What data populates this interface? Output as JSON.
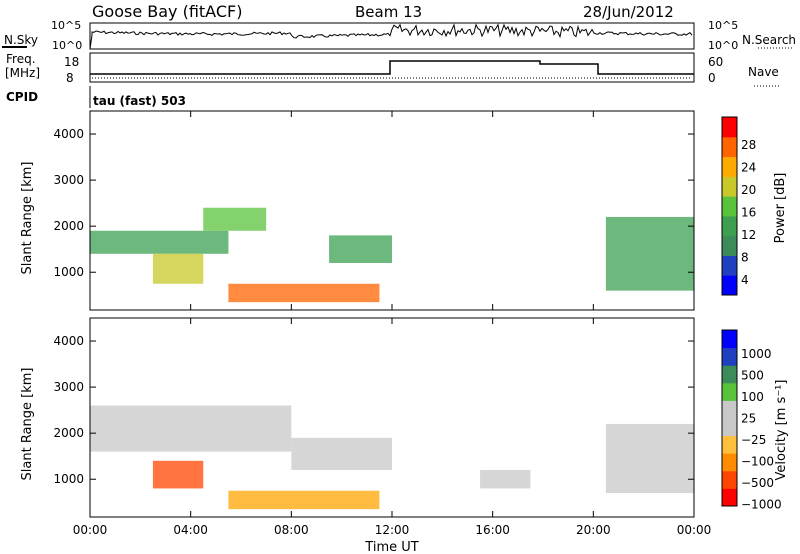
{
  "header": {
    "station": "Goose Bay (fitACF)",
    "beam": "Beam 13",
    "date": "28/Jun/2012"
  },
  "summary": {
    "nsky_label": "N.Sky",
    "nsky_ticks": [
      "10^5",
      "10^0"
    ],
    "nsearch_label": "N.Search",
    "nsearch_ticks": [
      "10^5",
      "10^0"
    ],
    "freq_label": "Freq.",
    "freq_unit": "[MHz]",
    "freq_ticks": [
      "18",
      "8"
    ],
    "nave_label": "Nave",
    "nave_ticks": [
      "60",
      "0"
    ],
    "cpid_label": "CPID",
    "cpid_value": "tau (fast) 503"
  },
  "chart_data": [
    {
      "type": "heatmap",
      "panel": "power",
      "ylabel": "Slant Range [km]",
      "yticks": [
        "1000",
        "2000",
        "3000",
        "4000"
      ],
      "ylim": [
        180,
        4500
      ],
      "xlim": [
        "00:00",
        "24:00"
      ],
      "colorbar_label": "Power [dB]",
      "colorbar_ticks": [
        "28",
        "24",
        "20",
        "16",
        "12",
        "8",
        "4"
      ],
      "colorbar_colors": [
        "#0000ff",
        "#2040c0",
        "#3c8c5a",
        "#3ca050",
        "#5ac33c",
        "#c8c828",
        "#ffaa00",
        "#ff6400",
        "#ff0000"
      ],
      "regions": [
        {
          "start": "00:00",
          "end": "05:30",
          "range_low": 1400,
          "range_high": 1900,
          "level": 12
        },
        {
          "start": "02:30",
          "end": "04:30",
          "range_low": 750,
          "range_high": 1400,
          "level": 20
        },
        {
          "start": "04:30",
          "end": "07:00",
          "range_low": 1900,
          "range_high": 2400,
          "level": 16
        },
        {
          "start": "05:30",
          "end": "11:30",
          "range_low": 350,
          "range_high": 750,
          "level": 26
        },
        {
          "start": "09:30",
          "end": "12:00",
          "range_low": 1200,
          "range_high": 1800,
          "level": 12
        },
        {
          "start": "20:30",
          "end": "24:00",
          "range_low": 600,
          "range_high": 2200,
          "level": 12
        }
      ]
    },
    {
      "type": "heatmap",
      "panel": "velocity",
      "ylabel": "Slant Range [km]",
      "yticks": [
        "1000",
        "2000",
        "3000",
        "4000"
      ],
      "ylim": [
        180,
        4500
      ],
      "xticks": [
        "00:00",
        "04:00",
        "08:00",
        "12:00",
        "16:00",
        "20:00",
        "00:00"
      ],
      "xlabel": "Time UT",
      "colorbar_label": "Velocity [m s⁻¹]",
      "colorbar_ticks": [
        "1000",
        "500",
        "100",
        "25",
        "−25",
        "−100",
        "−500",
        "−1000"
      ],
      "colorbar_colors": [
        "#ff0000",
        "#ff4600",
        "#ff8c00",
        "#ffbe3c",
        "#c8c8c8",
        "#c8c8c8",
        "#5ac33c",
        "#3c8c5a",
        "#2040c0",
        "#0000ff"
      ],
      "regions": [
        {
          "start": "00:00",
          "end": "08:00",
          "range_low": 1600,
          "range_high": 2600,
          "velocity": 0
        },
        {
          "start": "02:30",
          "end": "04:30",
          "range_low": 800,
          "range_high": 1400,
          "velocity": -500
        },
        {
          "start": "05:30",
          "end": "11:30",
          "range_low": 350,
          "range_high": 750,
          "velocity": -100
        },
        {
          "start": "08:00",
          "end": "12:00",
          "range_low": 1200,
          "range_high": 1900,
          "velocity": 0
        },
        {
          "start": "15:30",
          "end": "17:30",
          "range_low": 800,
          "range_high": 1200,
          "velocity": 0
        },
        {
          "start": "20:30",
          "end": "24:00",
          "range_low": 700,
          "range_high": 2200,
          "velocity": 0
        }
      ]
    }
  ]
}
